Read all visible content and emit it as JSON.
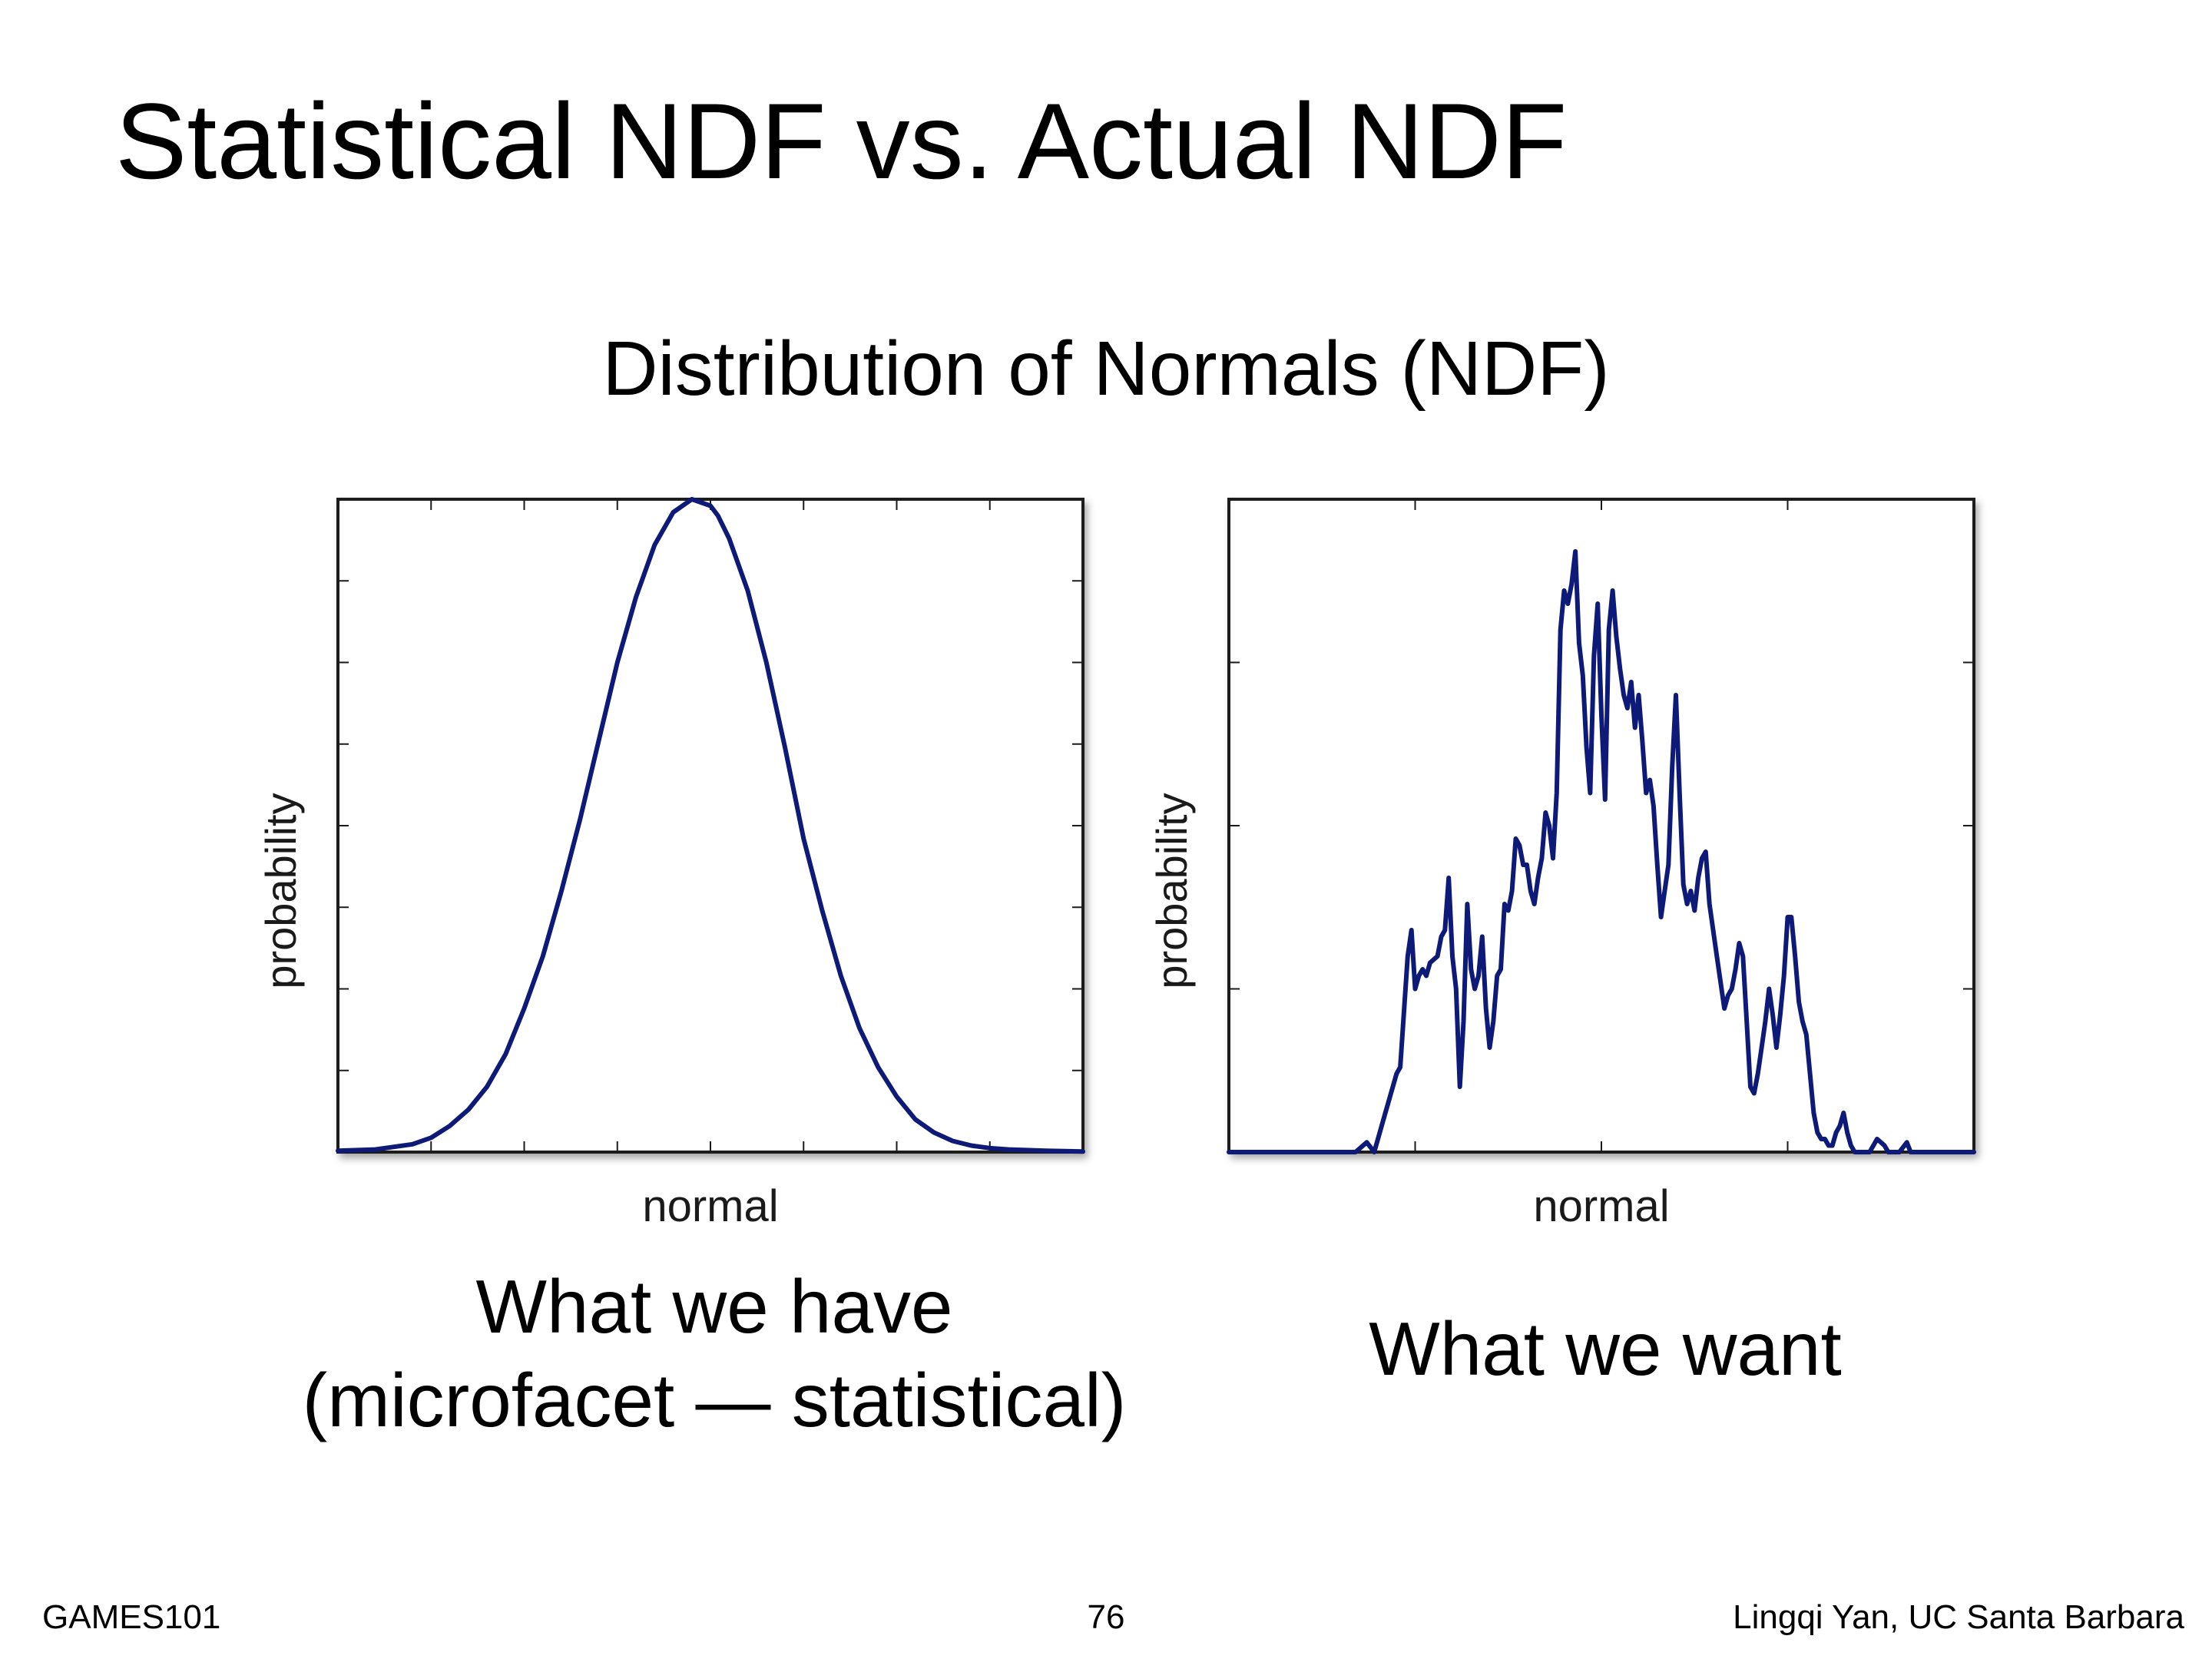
{
  "slide": {
    "title": "Statistical NDF vs. Actual NDF",
    "heading": "Distribution of Normals (NDF)",
    "captions": {
      "left_line1": "What we have",
      "left_line2": "(microfacet — statistical)",
      "right": "What we want"
    },
    "footer": {
      "course": "GAMES101",
      "page": "76",
      "author": "Lingqi Yan, UC Santa Barbara"
    }
  },
  "colors": {
    "curve": "#0d1a78",
    "frame": "#1a1a1a"
  },
  "chart_data": [
    {
      "type": "line",
      "title": "",
      "xlabel": "normal",
      "ylabel": "probability",
      "xlim": [
        0,
        1
      ],
      "ylim": [
        0,
        1
      ],
      "tick_labels_visible": false,
      "grid": false,
      "x_ticks": [
        0.125,
        0.25,
        0.375,
        0.5,
        0.625,
        0.75,
        0.875
      ],
      "y_ticks": [
        0.125,
        0.25,
        0.375,
        0.5,
        0.625,
        0.75,
        0.875
      ],
      "series": [
        {
          "color": "#0d1a78",
          "x": [
            0.0,
            0.05,
            0.1,
            0.125,
            0.15,
            0.175,
            0.2,
            0.225,
            0.25,
            0.275,
            0.3,
            0.325,
            0.35,
            0.375,
            0.4,
            0.425,
            0.45,
            0.475,
            0.5,
            0.51,
            0.525,
            0.55,
            0.575,
            0.6,
            0.625,
            0.65,
            0.675,
            0.7,
            0.725,
            0.75,
            0.775,
            0.8,
            0.825,
            0.85,
            0.875,
            0.9,
            0.95,
            1.0
          ],
          "y": [
            0.002,
            0.004,
            0.012,
            0.022,
            0.04,
            0.065,
            0.1,
            0.15,
            0.22,
            0.3,
            0.4,
            0.51,
            0.63,
            0.75,
            0.85,
            0.93,
            0.98,
            1.0,
            0.99,
            0.975,
            0.94,
            0.86,
            0.75,
            0.62,
            0.48,
            0.37,
            0.27,
            0.19,
            0.13,
            0.085,
            0.05,
            0.03,
            0.017,
            0.01,
            0.006,
            0.004,
            0.002,
            0.001
          ]
        }
      ]
    },
    {
      "type": "line",
      "title": "",
      "xlabel": "normal",
      "ylabel": "probability",
      "xlim": [
        0,
        1
      ],
      "ylim": [
        0,
        1
      ],
      "tick_labels_visible": false,
      "grid": false,
      "x_ticks": [
        0.25,
        0.5,
        0.75
      ],
      "y_ticks": [
        0.25,
        0.5,
        0.75
      ],
      "series": [
        {
          "color": "#0d1a78",
          "x": [
            0.0,
            0.1,
            0.17,
            0.185,
            0.195,
            0.21,
            0.225,
            0.23,
            0.24,
            0.245,
            0.25,
            0.255,
            0.26,
            0.265,
            0.27,
            0.28,
            0.285,
            0.29,
            0.295,
            0.3,
            0.305,
            0.31,
            0.315,
            0.32,
            0.325,
            0.33,
            0.335,
            0.34,
            0.345,
            0.35,
            0.355,
            0.36,
            0.365,
            0.37,
            0.375,
            0.38,
            0.385,
            0.39,
            0.395,
            0.4,
            0.405,
            0.41,
            0.415,
            0.42,
            0.425,
            0.43,
            0.435,
            0.44,
            0.445,
            0.45,
            0.455,
            0.46,
            0.465,
            0.47,
            0.475,
            0.48,
            0.485,
            0.49,
            0.495,
            0.5,
            0.505,
            0.51,
            0.515,
            0.52,
            0.525,
            0.53,
            0.535,
            0.54,
            0.545,
            0.55,
            0.555,
            0.56,
            0.565,
            0.57,
            0.575,
            0.58,
            0.585,
            0.59,
            0.595,
            0.6,
            0.605,
            0.61,
            0.615,
            0.62,
            0.625,
            0.63,
            0.635,
            0.64,
            0.645,
            0.65,
            0.655,
            0.66,
            0.665,
            0.67,
            0.675,
            0.68,
            0.685,
            0.69,
            0.695,
            0.7,
            0.705,
            0.71,
            0.715,
            0.72,
            0.725,
            0.73,
            0.735,
            0.74,
            0.745,
            0.75,
            0.755,
            0.76,
            0.765,
            0.77,
            0.775,
            0.78,
            0.785,
            0.79,
            0.795,
            0.8,
            0.805,
            0.81,
            0.815,
            0.82,
            0.825,
            0.83,
            0.835,
            0.84,
            0.85,
            0.86,
            0.865,
            0.87,
            0.875,
            0.88,
            0.885,
            0.89,
            0.9,
            0.91,
            0.915,
            0.92,
            0.93,
            1.0
          ],
          "y": [
            0.0,
            0.0,
            0.0,
            0.015,
            0.0,
            0.06,
            0.12,
            0.13,
            0.3,
            0.34,
            0.25,
            0.27,
            0.28,
            0.27,
            0.29,
            0.3,
            0.33,
            0.34,
            0.42,
            0.3,
            0.25,
            0.1,
            0.2,
            0.38,
            0.28,
            0.25,
            0.27,
            0.33,
            0.22,
            0.16,
            0.2,
            0.27,
            0.28,
            0.38,
            0.37,
            0.4,
            0.48,
            0.47,
            0.44,
            0.44,
            0.4,
            0.38,
            0.42,
            0.45,
            0.52,
            0.5,
            0.45,
            0.55,
            0.8,
            0.86,
            0.84,
            0.87,
            0.92,
            0.78,
            0.73,
            0.62,
            0.55,
            0.76,
            0.84,
            0.67,
            0.54,
            0.8,
            0.86,
            0.79,
            0.74,
            0.7,
            0.68,
            0.72,
            0.65,
            0.7,
            0.63,
            0.55,
            0.57,
            0.53,
            0.44,
            0.36,
            0.4,
            0.44,
            0.59,
            0.7,
            0.55,
            0.41,
            0.38,
            0.4,
            0.37,
            0.42,
            0.45,
            0.46,
            0.38,
            0.34,
            0.3,
            0.26,
            0.22,
            0.24,
            0.25,
            0.28,
            0.32,
            0.3,
            0.2,
            0.1,
            0.09,
            0.12,
            0.16,
            0.2,
            0.25,
            0.21,
            0.16,
            0.21,
            0.27,
            0.36,
            0.36,
            0.3,
            0.23,
            0.2,
            0.18,
            0.12,
            0.06,
            0.03,
            0.02,
            0.02,
            0.01,
            0.01,
            0.03,
            0.04,
            0.06,
            0.03,
            0.01,
            0.0,
            0.0,
            0.0,
            0.01,
            0.02,
            0.015,
            0.01,
            0.0,
            0.0,
            0.0,
            0.015,
            0.0,
            0.0,
            0.0,
            0.0
          ]
        }
      ]
    }
  ]
}
